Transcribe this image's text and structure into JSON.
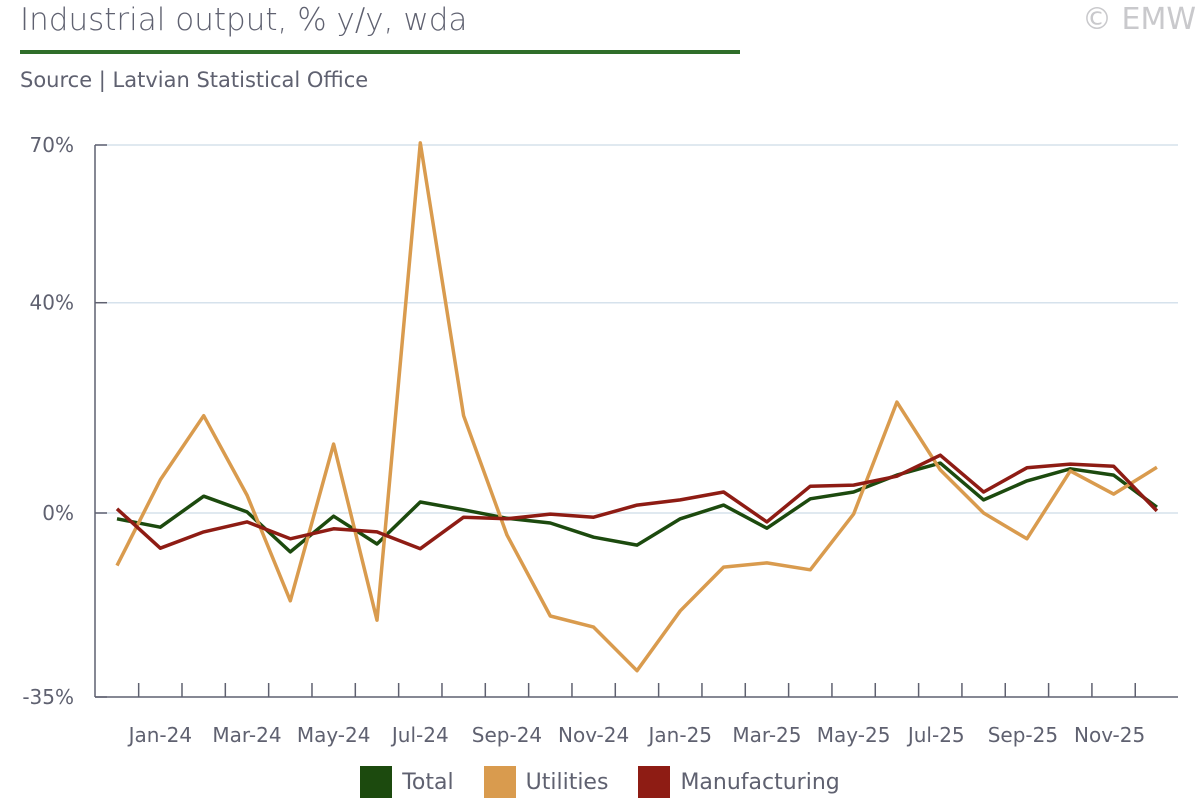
{
  "header": {
    "title": "Industrial output, % y/y, wda",
    "source": "Source | Latvian Statistical Office",
    "copyright": "© EMW"
  },
  "chart_data": {
    "type": "line",
    "title": "Industrial output, % y/y, wda",
    "xlabel": "",
    "ylabel": "",
    "ylim": [
      -35,
      70
    ],
    "yticks": [
      70,
      40,
      0,
      -35
    ],
    "ytick_labels": [
      "70%",
      "40%",
      "0%",
      "-35%"
    ],
    "x": [
      "Dec-23",
      "Jan-24",
      "Feb-24",
      "Mar-24",
      "Apr-24",
      "May-24",
      "Jun-24",
      "Jul-24",
      "Aug-24",
      "Sep-24",
      "Oct-24",
      "Nov-24",
      "Dec-24",
      "Jan-25",
      "Feb-25",
      "Mar-25",
      "Apr-25",
      "May-25",
      "Jun-25",
      "Jul-25",
      "Aug-25",
      "Sep-25",
      "Oct-25",
      "Nov-25",
      "Dec-25"
    ],
    "xtick_labels": [
      "Jan-24",
      "Mar-24",
      "May-24",
      "Jul-24",
      "Sep-24",
      "Nov-24",
      "Jan-25",
      "Mar-25",
      "May-25",
      "Jul-25",
      "Sep-25",
      "Nov-25"
    ],
    "grid": true,
    "legend_position": "bottom",
    "series": [
      {
        "name": "Total",
        "color": "#1c4a0e",
        "values": [
          -1.1,
          -2.7,
          3.2,
          0.2,
          -7.4,
          -0.6,
          -5.9,
          2.1,
          0.6,
          -1.0,
          -1.9,
          -4.6,
          -6.1,
          -1.1,
          1.5,
          -2.9,
          2.7,
          4.0,
          7.2,
          9.5,
          2.5,
          6.1,
          8.4,
          7.2,
          1.1
        ]
      },
      {
        "name": "Utilities",
        "color": "#d99b4e",
        "values": [
          -10.0,
          6.3,
          18.5,
          3.4,
          -16.7,
          13.1,
          -20.4,
          70.4,
          18.5,
          -4.2,
          -19.6,
          -21.7,
          -30.0,
          -18.6,
          -10.3,
          -9.5,
          -10.8,
          -0.2,
          21.1,
          8.2,
          0.0,
          -4.9,
          8.0,
          3.6,
          8.7
        ]
      },
      {
        "name": "Manufacturing",
        "color": "#8e1c14",
        "values": [
          0.8,
          -6.7,
          -3.6,
          -1.7,
          -4.9,
          -3.0,
          -3.6,
          -6.8,
          -0.8,
          -1.1,
          -0.2,
          -0.8,
          1.5,
          2.5,
          4.0,
          -1.7,
          5.1,
          5.3,
          7.0,
          11.0,
          4.0,
          8.6,
          9.3,
          8.9,
          0.4
        ]
      }
    ]
  }
}
